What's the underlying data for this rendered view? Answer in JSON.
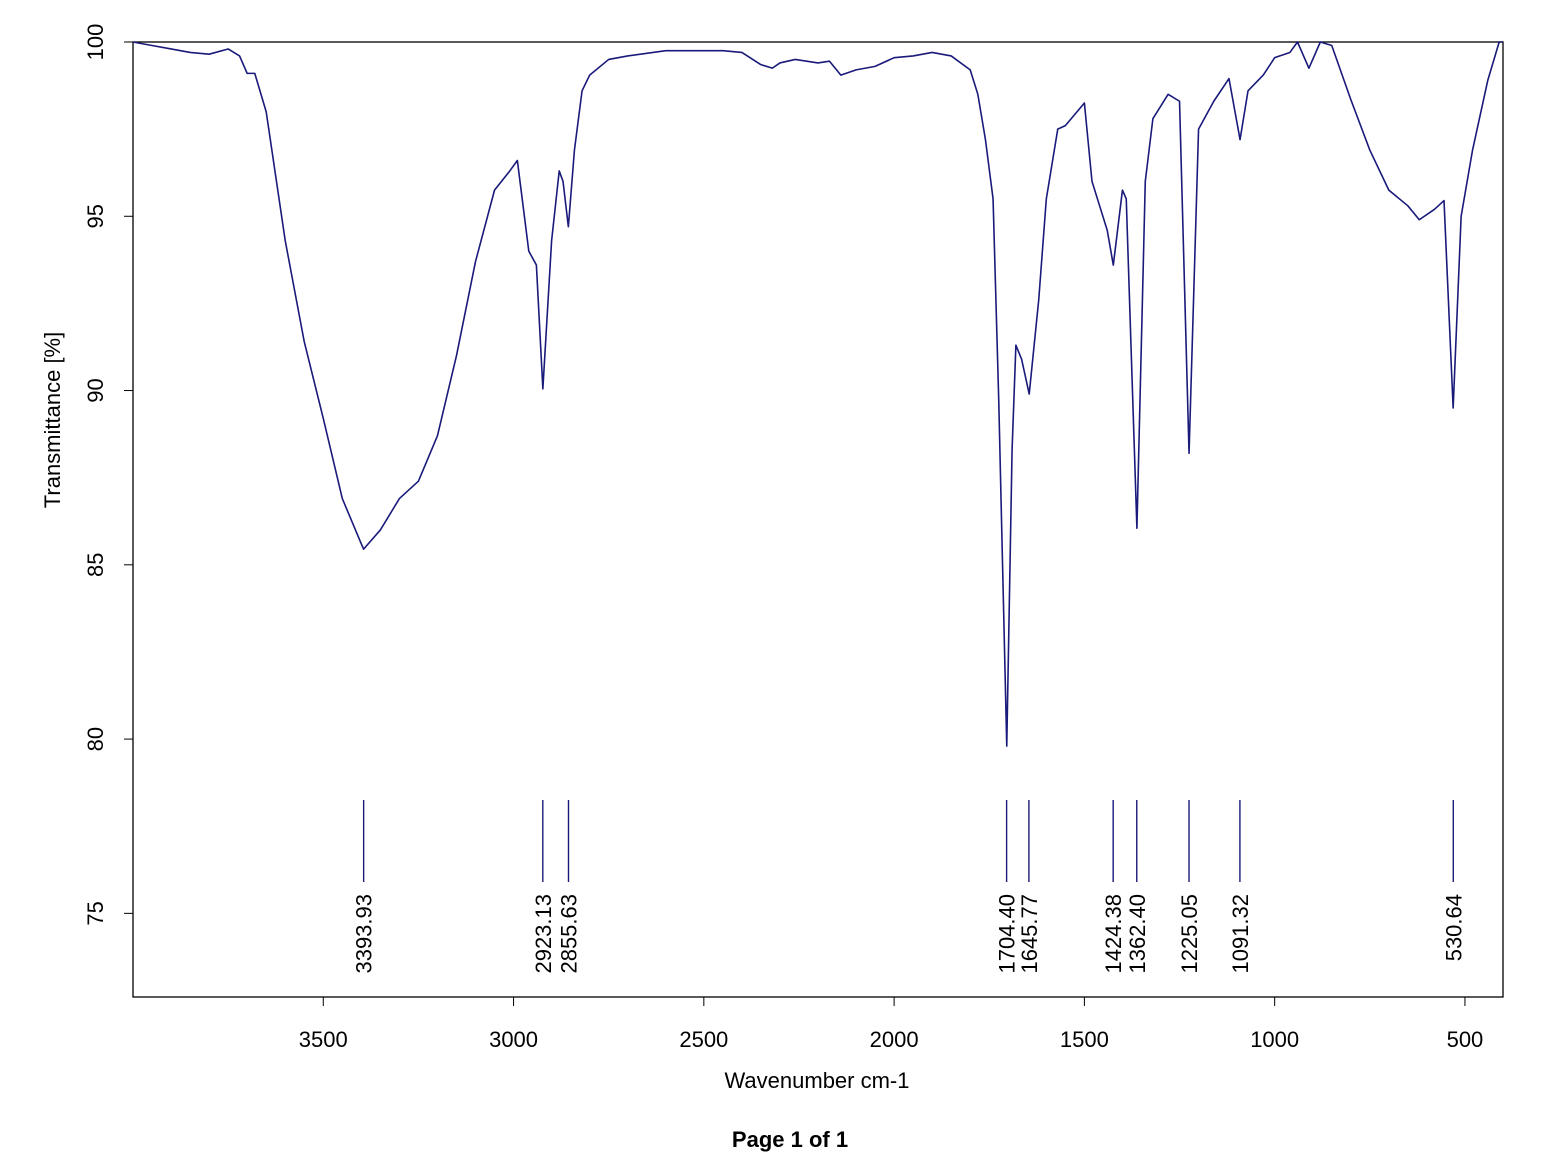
{
  "chart_data": {
    "type": "line",
    "xlabel": "Wavenumber cm-1",
    "ylabel": "Transmittance [%]",
    "color": "#1a1a7a",
    "xlim": [
      4000,
      400
    ],
    "ylim": [
      72.6,
      100
    ],
    "xticks": [
      3500,
      3000,
      2500,
      2000,
      1500,
      1000,
      500
    ],
    "yticks": [
      75,
      80,
      85,
      90,
      95,
      100
    ],
    "x": [
      4000,
      3950,
      3900,
      3850,
      3800,
      3750,
      3720,
      3700,
      3680,
      3650,
      3600,
      3550,
      3500,
      3450,
      3400,
      3394,
      3350,
      3300,
      3250,
      3200,
      3150,
      3100,
      3050,
      3010,
      2990,
      2960,
      2940,
      2923,
      2900,
      2880,
      2870,
      2856,
      2840,
      2820,
      2800,
      2750,
      2700,
      2600,
      2500,
      2450,
      2400,
      2350,
      2320,
      2300,
      2260,
      2200,
      2170,
      2140,
      2100,
      2050,
      2000,
      1950,
      1900,
      1850,
      1800,
      1780,
      1760,
      1740,
      1725,
      1704,
      1690,
      1680,
      1665,
      1645,
      1620,
      1600,
      1570,
      1550,
      1500,
      1480,
      1460,
      1440,
      1424,
      1400,
      1390,
      1362,
      1340,
      1320,
      1280,
      1250,
      1225,
      1200,
      1160,
      1120,
      1091,
      1070,
      1030,
      1000,
      960,
      940,
      910,
      880,
      850,
      800,
      750,
      700,
      650,
      620,
      580,
      555,
      531,
      510,
      480,
      440,
      410,
      400
    ],
    "values": [
      100,
      99.9,
      99.8,
      99.7,
      99.65,
      99.8,
      99.6,
      99.1,
      99.1,
      98.0,
      94.3,
      91.4,
      89.2,
      86.9,
      85.6,
      85.45,
      86.0,
      86.9,
      87.4,
      88.7,
      91.0,
      93.7,
      95.75,
      96.3,
      96.6,
      94.0,
      93.6,
      90.05,
      94.3,
      96.3,
      96.0,
      94.7,
      96.9,
      98.6,
      99.05,
      99.5,
      99.6,
      99.75,
      99.75,
      99.75,
      99.7,
      99.35,
      99.25,
      99.4,
      99.5,
      99.4,
      99.45,
      99.05,
      99.2,
      99.3,
      99.55,
      99.6,
      99.7,
      99.6,
      99.2,
      98.5,
      97.2,
      95.5,
      89.7,
      79.8,
      88.3,
      91.3,
      90.9,
      89.9,
      92.6,
      95.5,
      97.5,
      97.6,
      98.25,
      96.0,
      95.3,
      94.6,
      93.6,
      95.75,
      95.5,
      86.05,
      96.0,
      97.8,
      98.5,
      98.3,
      88.2,
      97.5,
      98.3,
      98.95,
      97.2,
      98.6,
      99.05,
      99.55,
      99.7,
      100,
      99.25,
      100,
      99.9,
      98.35,
      96.9,
      95.75,
      95.3,
      94.9,
      95.2,
      95.45,
      89.5,
      95.0,
      96.9,
      98.9,
      100,
      100
    ],
    "peaks": [
      3393.93,
      2923.13,
      2855.63,
      {
        "value": 1704.4,
        "label": "1704.40"
      },
      1645.77,
      1424.38,
      {
        "value": 1362.4,
        "label": "1362.40"
      },
      1225.05,
      1091.32,
      530.64
    ]
  },
  "footer": "Page 1 of 1"
}
